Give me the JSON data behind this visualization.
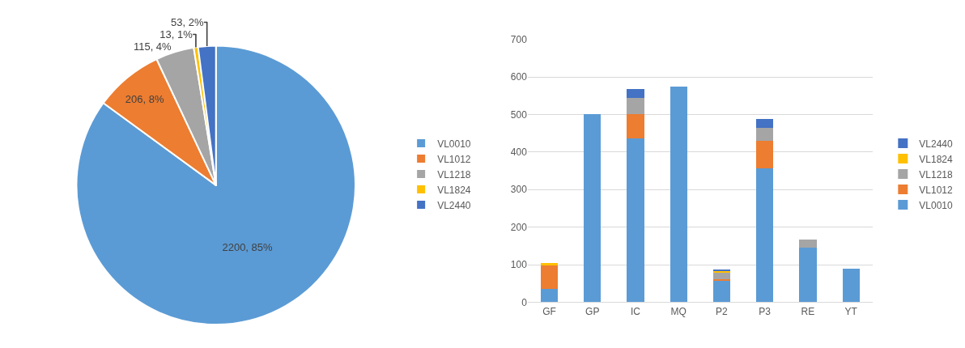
{
  "chart_data": [
    {
      "type": "pie",
      "categories": [
        "VL0010",
        "VL1012",
        "VL1218",
        "VL1824",
        "VL2440"
      ],
      "values": [
        2200,
        206,
        115,
        13,
        53
      ],
      "colors": [
        "#5b9bd5",
        "#ed7d31",
        "#a5a5a5",
        "#ffc000",
        "#4472c4"
      ],
      "value_labels": [
        "2200, 85%",
        "206, 8%",
        "115, 4%",
        "13, 1%",
        "53, 2%"
      ],
      "legend": "right"
    },
    {
      "type": "bar",
      "stacked": true,
      "categories": [
        "GF",
        "GP",
        "IC",
        "MQ",
        "P2",
        "P3",
        "RE",
        "YT"
      ],
      "series": [
        {
          "name": "VL0010",
          "color": "#5b9bd5",
          "values": [
            35,
            500,
            437,
            574,
            57,
            357,
            145,
            90
          ]
        },
        {
          "name": "VL1012",
          "color": "#ed7d31",
          "values": [
            62,
            null,
            64,
            null,
            5,
            73,
            null,
            null
          ]
        },
        {
          "name": "VL1218",
          "color": "#a5a5a5",
          "values": [
            null,
            null,
            44,
            null,
            16,
            35,
            21,
            null
          ]
        },
        {
          "name": "VL1824",
          "color": "#ffc000",
          "values": [
            7,
            null,
            null,
            null,
            5,
            null,
            null,
            null
          ]
        },
        {
          "name": "VL2440",
          "color": "#4472c4",
          "values": [
            null,
            null,
            23,
            null,
            5,
            23,
            null,
            null
          ]
        }
      ],
      "ylim": [
        0,
        700
      ],
      "yticks": [
        0,
        100,
        200,
        300,
        400,
        500,
        600,
        700
      ],
      "grid": "y",
      "legend": "right"
    }
  ]
}
